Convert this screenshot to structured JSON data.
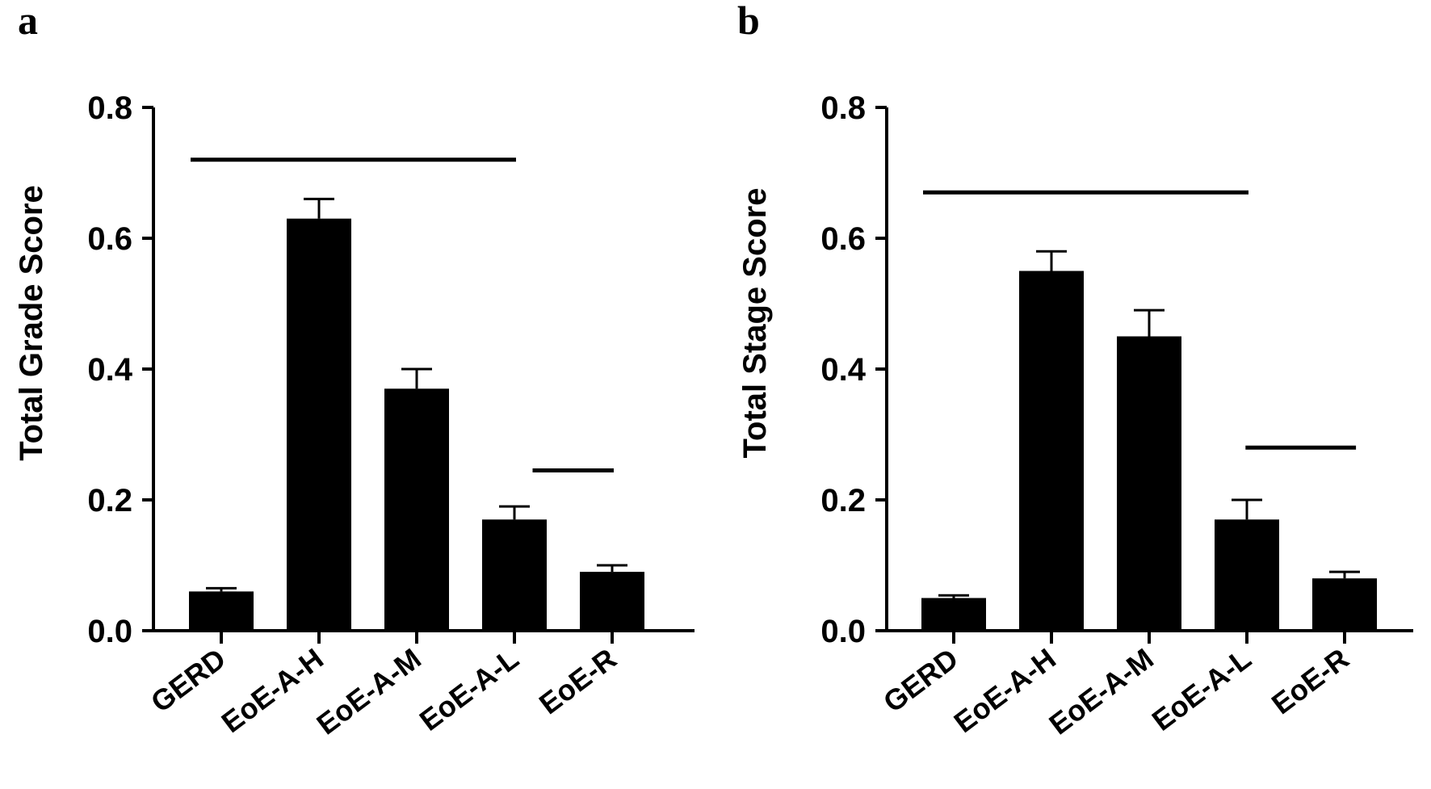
{
  "chart_data": [
    {
      "panel": "a",
      "type": "bar",
      "ylabel": "Total Grade Score",
      "xlabel": "",
      "categories": [
        "GERD",
        "EoE-A-H",
        "EoE-A-M",
        "EoE-A-L",
        "EoE-R"
      ],
      "values": [
        0.06,
        0.63,
        0.37,
        0.17,
        0.09
      ],
      "errors": [
        0.005,
        0.03,
        0.03,
        0.02,
        0.01
      ],
      "ylim": [
        0,
        0.8
      ],
      "yticks": [
        "0.0",
        "0.2",
        "0.4",
        "0.6",
        "0.8"
      ],
      "color": "#000000",
      "brackets": [
        {
          "from": 0,
          "to": 3,
          "y": 0.72
        },
        {
          "from": 3.5,
          "to": 4,
          "y": 0.245
        }
      ]
    },
    {
      "panel": "b",
      "type": "bar",
      "ylabel": "Total Stage Score",
      "xlabel": "",
      "categories": [
        "GERD",
        "EoE-A-H",
        "EoE-A-M",
        "EoE-A-L",
        "EoE-R"
      ],
      "values": [
        0.05,
        0.55,
        0.45,
        0.17,
        0.08
      ],
      "errors": [
        0.004,
        0.03,
        0.04,
        0.03,
        0.01
      ],
      "ylim": [
        0,
        0.8
      ],
      "yticks": [
        "0.0",
        "0.2",
        "0.4",
        "0.6",
        "0.8"
      ],
      "color": "#000000",
      "brackets": [
        {
          "from": 0,
          "to": 3,
          "y": 0.67
        },
        {
          "from": 3.3,
          "to": 4.1,
          "y": 0.28
        }
      ]
    }
  ]
}
